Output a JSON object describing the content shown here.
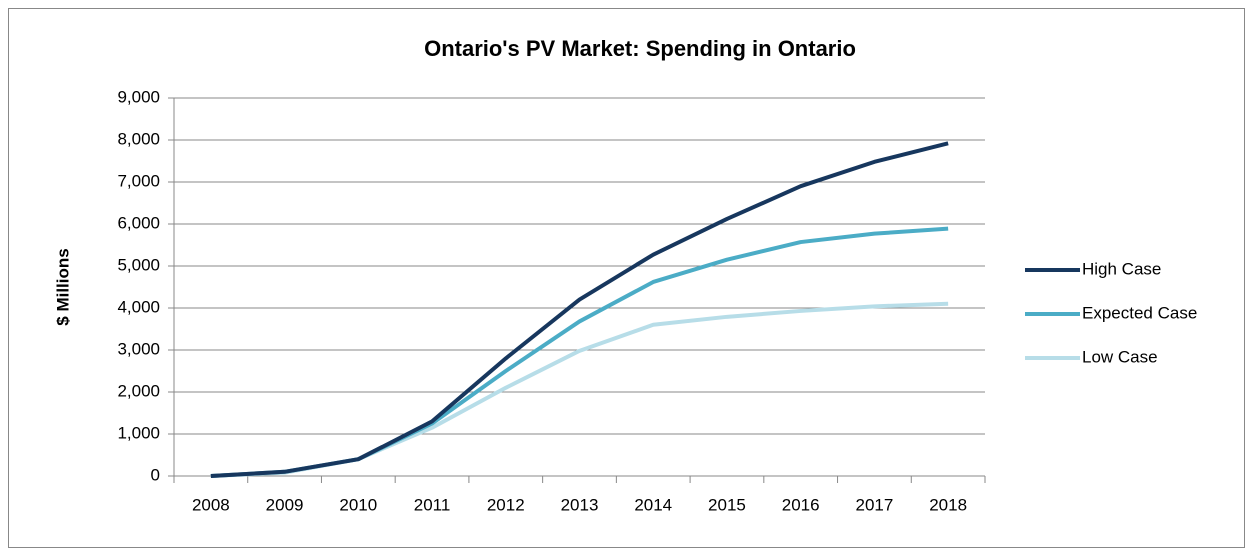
{
  "chart_data": {
    "type": "line",
    "title": "Ontario's PV Market: Spending in Ontario",
    "y_label": "$ Millions",
    "categories": [
      "2008",
      "2009",
      "2010",
      "2011",
      "2012",
      "2013",
      "2014",
      "2015",
      "2016",
      "2017",
      "2018"
    ],
    "series": [
      {
        "name": "High Case",
        "color": "#17375e",
        "values": [
          0,
          100,
          400,
          1300,
          2800,
          4200,
          5270,
          6120,
          6900,
          7480,
          7920
        ]
      },
      {
        "name": "Expected Case",
        "color": "#4bacc6",
        "values": [
          0,
          100,
          400,
          1250,
          2500,
          3680,
          4620,
          5150,
          5570,
          5770,
          5890
        ]
      },
      {
        "name": "Low Case",
        "color": "#b7dde8",
        "values": [
          0,
          80,
          400,
          1150,
          2100,
          2980,
          3600,
          3790,
          3930,
          4040,
          4100
        ]
      }
    ],
    "ylim": [
      0,
      9000
    ],
    "yticks": [
      0,
      {
        "value": 1000,
        "label": "1,000"
      },
      {
        "value": 2000,
        "label": "2,000"
      },
      {
        "value": 3000,
        "label": "3,000"
      },
      {
        "value": 4000,
        "label": "4,000"
      },
      {
        "value": 5000,
        "label": "5,000"
      },
      {
        "value": 6000,
        "label": "6,000"
      },
      {
        "value": 7000,
        "label": "7,000"
      },
      {
        "value": 8000,
        "label": "8,000"
      },
      {
        "value": 9000,
        "label": "9,000"
      }
    ],
    "grid": true,
    "legend": "right"
  }
}
